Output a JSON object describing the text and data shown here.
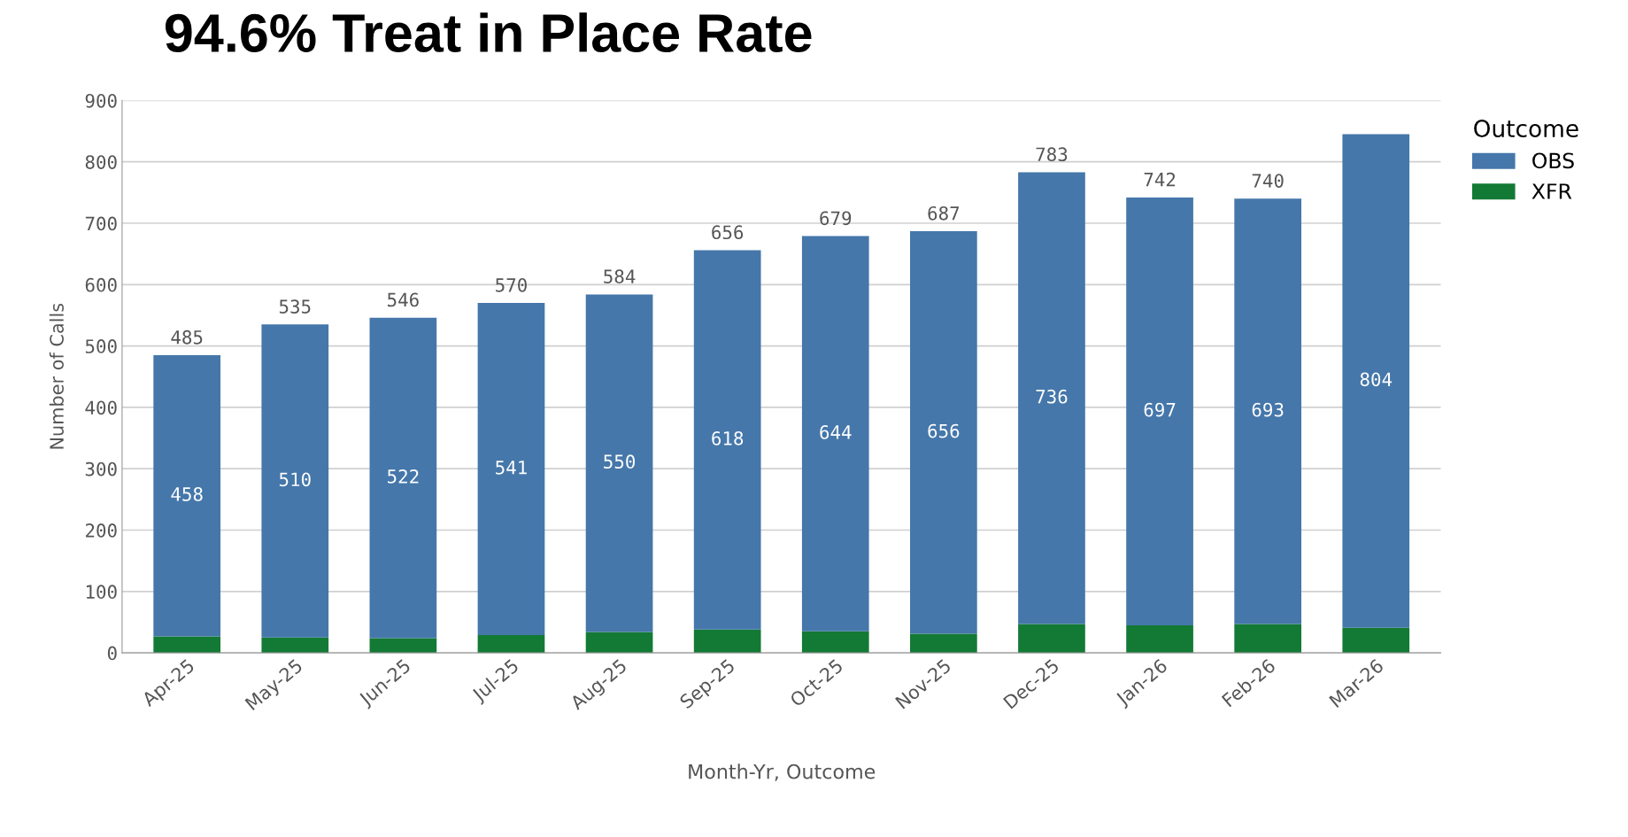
{
  "chart_data": {
    "type": "bar",
    "title": "94.6% Treat in Place Rate",
    "xlabel": "Month-Yr, Outcome",
    "ylabel": "Number of Calls",
    "legend_title": "Outcome",
    "categories": [
      "Apr-25",
      "May-25",
      "Jun-25",
      "Jul-25",
      "Aug-25",
      "Sep-25",
      "Oct-25",
      "Nov-25",
      "Dec-25",
      "Jan-26",
      "Feb-26",
      "Mar-26"
    ],
    "stacked": true,
    "series": [
      {
        "name": "XFR",
        "color": "#137a35",
        "values": [
          27,
          25,
          24,
          29,
          34,
          38,
          35,
          31,
          47,
          45,
          47,
          41
        ]
      },
      {
        "name": "OBS",
        "color": "#4577aa",
        "values": [
          458,
          510,
          522,
          541,
          550,
          618,
          644,
          656,
          736,
          697,
          693,
          804
        ],
        "value_labels": [
          "458",
          "510",
          "522",
          "541",
          "550",
          "618",
          "644",
          "656",
          "736",
          "697",
          "693",
          "804"
        ]
      }
    ],
    "totals": [
      "485",
      "535",
      "546",
      "570",
      "584",
      "656",
      "679",
      "687",
      "783",
      "742",
      "740",
      null
    ],
    "ylim": [
      0,
      900
    ],
    "yticks": [
      0,
      100,
      200,
      300,
      400,
      500,
      600,
      700,
      800,
      900
    ],
    "grid": "y",
    "legend": "top right"
  }
}
